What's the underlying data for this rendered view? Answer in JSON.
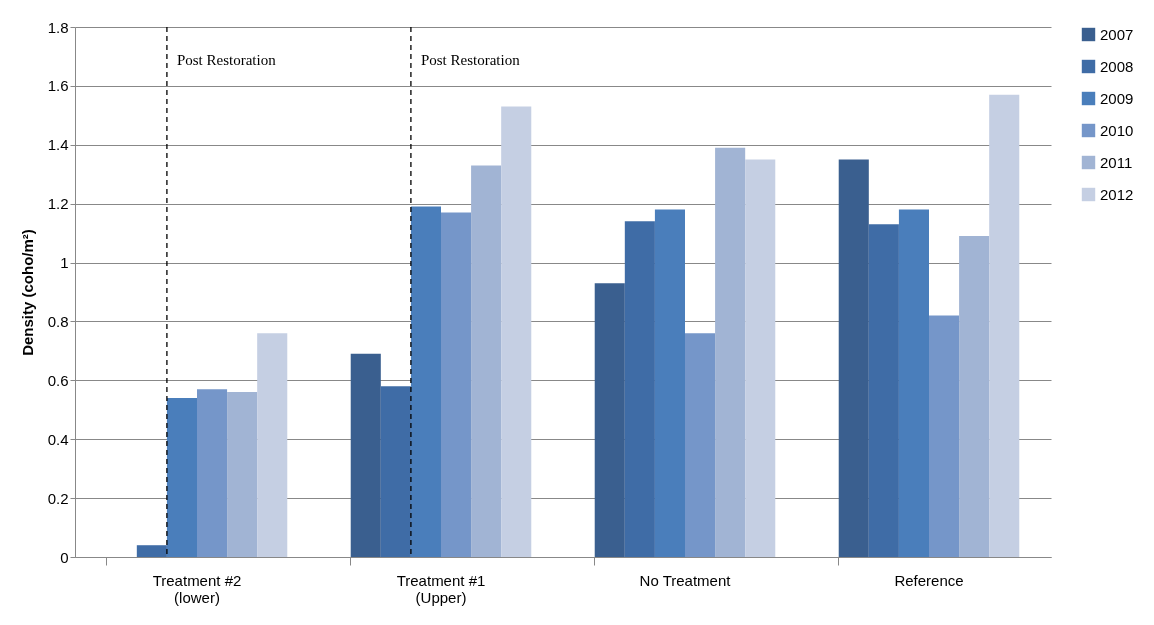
{
  "chart_data": {
    "type": "bar",
    "ylabel": "Density (coho/m²)",
    "categories": [
      "Treatment #2\n(lower)",
      "Treatment #1\n(Upper)",
      "No Treatment",
      "Reference"
    ],
    "series": [
      {
        "name": "2007",
        "color": "#3a5f8f",
        "values": [
          null,
          0.69,
          0.93,
          1.35
        ]
      },
      {
        "name": "2008",
        "color": "#3f6ca6",
        "values": [
          0.04,
          0.58,
          1.14,
          1.13
        ]
      },
      {
        "name": "2009",
        "color": "#4a7ebb",
        "values": [
          0.54,
          1.19,
          1.18,
          1.18
        ]
      },
      {
        "name": "2010",
        "color": "#7596c9",
        "values": [
          0.57,
          1.17,
          0.76,
          0.82
        ]
      },
      {
        "name": "2011",
        "color": "#a1b4d4",
        "values": [
          0.56,
          1.33,
          1.39,
          1.09
        ]
      },
      {
        "name": "2012",
        "color": "#c5cfe3",
        "values": [
          0.76,
          1.53,
          1.35,
          1.57
        ]
      }
    ],
    "ylim": [
      0,
      1.8
    ],
    "yticks": [
      0,
      0.2,
      0.4,
      0.6,
      0.8,
      1,
      1.2,
      1.4,
      1.6,
      1.8
    ],
    "grid": "y",
    "legend": "right",
    "ref_lines": [
      {
        "axis": "x",
        "value": "Treatment #2\n(lower)",
        "label": "Post Restoration",
        "color": "#000000",
        "line_style": "dashed"
      },
      {
        "axis": "x",
        "value": "Treatment #1\n(Upper)",
        "label": "Post Restoration",
        "color": "#000000",
        "line_style": "dashed"
      }
    ]
  }
}
